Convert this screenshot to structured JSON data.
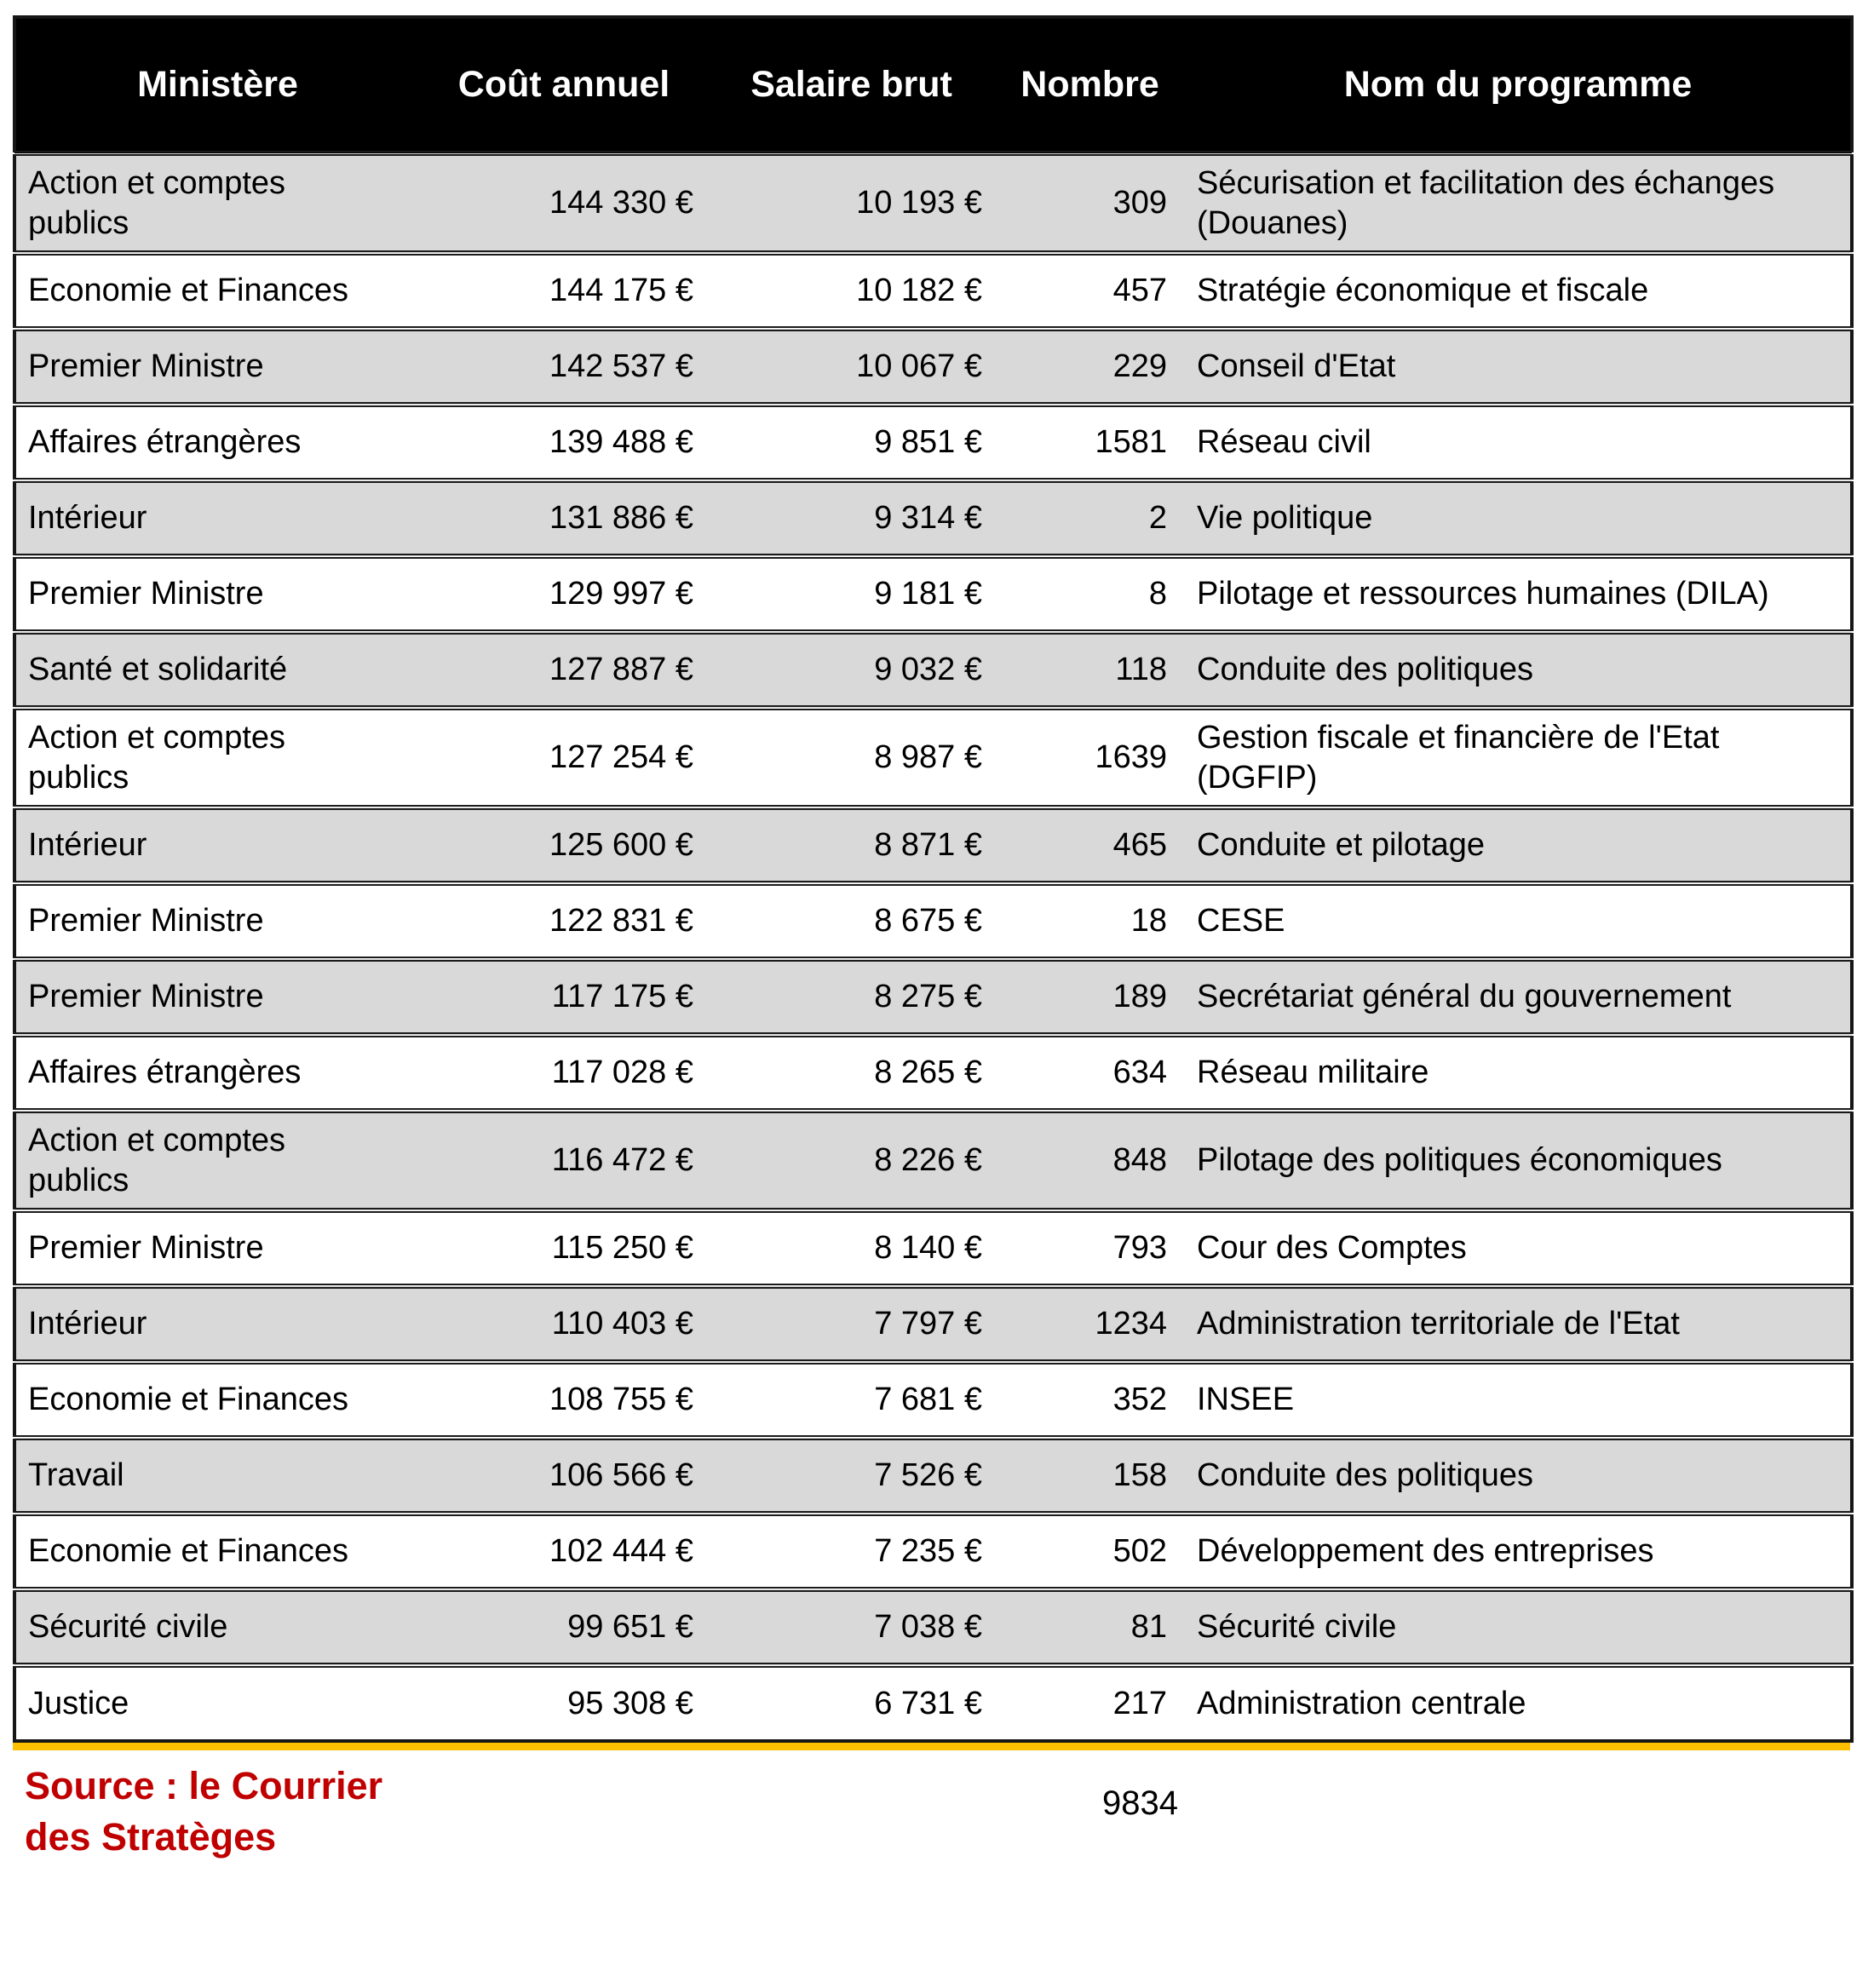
{
  "chart_data": {
    "type": "table",
    "columns": [
      "Ministère",
      "Coût annuel",
      "Salaire brut",
      "Nombre",
      "Nom du programme"
    ],
    "rows": [
      [
        "Action et comptes\npublics",
        "144 330 €",
        "10 193 €",
        "309",
        "Sécurisation et facilitation des échanges\n(Douanes)"
      ],
      [
        "Economie et Finances",
        "144 175 €",
        "10 182 €",
        "457",
        "Stratégie économique et fiscale"
      ],
      [
        "Premier Ministre",
        "142 537 €",
        "10 067 €",
        "229",
        "Conseil d'Etat"
      ],
      [
        "Affaires étrangères",
        "139 488 €",
        "9 851 €",
        "1581",
        "Réseau civil"
      ],
      [
        "Intérieur",
        "131 886 €",
        "9 314 €",
        "2",
        "Vie politique"
      ],
      [
        "Premier Ministre",
        "129 997 €",
        "9 181 €",
        "8",
        "Pilotage et ressources humaines (DILA)"
      ],
      [
        "Santé et solidarité",
        "127 887 €",
        "9 032 €",
        "118",
        "Conduite des politiques"
      ],
      [
        "Action et comptes\npublics",
        "127 254 €",
        "8 987 €",
        "1639",
        "Gestion fiscale et financière de l'Etat\n(DGFIP)"
      ],
      [
        "Intérieur",
        "125 600 €",
        "8 871 €",
        "465",
        "Conduite et pilotage"
      ],
      [
        "Premier Ministre",
        "122 831 €",
        "8 675 €",
        "18",
        "CESE"
      ],
      [
        "Premier Ministre",
        "117 175 €",
        "8 275 €",
        "189",
        "Secrétariat général du gouvernement"
      ],
      [
        "Affaires étrangères",
        "117 028 €",
        "8 265 €",
        "634",
        "Réseau militaire"
      ],
      [
        "Action et comptes\npublics",
        "116 472 €",
        "8 226 €",
        "848",
        "Pilotage des politiques économiques"
      ],
      [
        "Premier Ministre",
        "115 250 €",
        "8 140 €",
        "793",
        "Cour des Comptes"
      ],
      [
        "Intérieur",
        "110 403 €",
        "7 797 €",
        "1234",
        "Administration territoriale de l'Etat"
      ],
      [
        "Economie et Finances",
        "108 755 €",
        "7 681 €",
        "352",
        "INSEE"
      ],
      [
        "Travail",
        "106 566 €",
        "7 526 €",
        "158",
        "Conduite des politiques"
      ],
      [
        "Economie et Finances",
        "102 444 €",
        "7 235 €",
        "502",
        "Développement des entreprises"
      ],
      [
        "Sécurité civile",
        "99 651 €",
        "7 038 €",
        "81",
        "Sécurité civile"
      ],
      [
        "Justice",
        "95 308 €",
        "6 731 €",
        "217",
        "Administration centrale"
      ]
    ],
    "total_nombre": "9834",
    "source": "Source : le Courrier\ndes Stratèges",
    "legend_position": "none",
    "grid": "horizontal-row-separators-only"
  },
  "colors": {
    "header_bg": "#000000",
    "header_text": "#ffffff",
    "row_alt": "#d9d9d9",
    "row_base": "#ffffff",
    "border": "#1a1a1a",
    "accent_line": "#FFC000",
    "source_text": "#C00000"
  }
}
